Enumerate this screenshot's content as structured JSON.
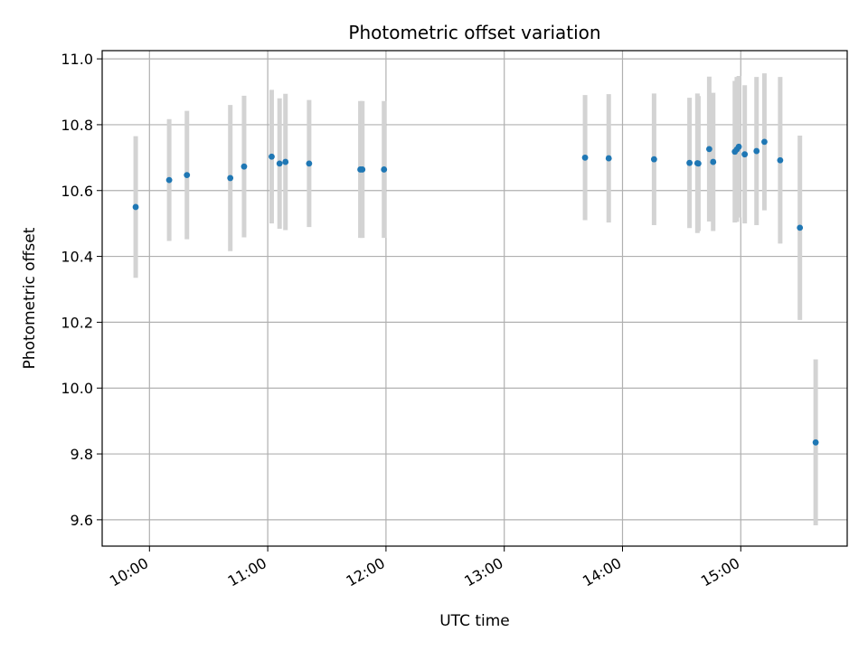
{
  "chart_data": {
    "type": "scatter",
    "title": "Photometric offset variation",
    "xlabel": "UTC time",
    "ylabel": "Photometric offset",
    "x_tick_labels": [
      "10:00",
      "11:00",
      "12:00",
      "13:00",
      "14:00",
      "15:00"
    ],
    "y_tick_labels": [
      "9.6",
      "9.8",
      "10.0",
      "10.2",
      "10.4",
      "10.6",
      "10.8",
      "11.0"
    ],
    "grid": true,
    "xlim": [
      "09:36",
      "15:54"
    ],
    "ylim": [
      9.52,
      11.025
    ],
    "points": [
      {
        "x": "09:53",
        "y": 10.55,
        "yerr": 0.215
      },
      {
        "x": "10:10",
        "y": 10.632,
        "yerr": 0.185
      },
      {
        "x": "10:19",
        "y": 10.647,
        "yerr": 0.195
      },
      {
        "x": "10:41",
        "y": 10.638,
        "yerr": 0.222
      },
      {
        "x": "10:48",
        "y": 10.673,
        "yerr": 0.215
      },
      {
        "x": "11:02",
        "y": 10.703,
        "yerr": 0.203
      },
      {
        "x": "11:06",
        "y": 10.682,
        "yerr": 0.198
      },
      {
        "x": "11:09",
        "y": 10.687,
        "yerr": 0.207
      },
      {
        "x": "11:21",
        "y": 10.682,
        "yerr": 0.193
      },
      {
        "x": "11:47",
        "y": 10.664,
        "yerr": 0.208
      },
      {
        "x": "11:48",
        "y": 10.664,
        "yerr": 0.208
      },
      {
        "x": "11:59",
        "y": 10.664,
        "yerr": 0.208
      },
      {
        "x": "13:41",
        "y": 10.7,
        "yerr": 0.19
      },
      {
        "x": "13:53",
        "y": 10.698,
        "yerr": 0.195
      },
      {
        "x": "14:16",
        "y": 10.695,
        "yerr": 0.2
      },
      {
        "x": "14:34",
        "y": 10.684,
        "yerr": 0.198
      },
      {
        "x": "14:38",
        "y": 10.683,
        "yerr": 0.212
      },
      {
        "x": "14:38.5",
        "y": 10.682,
        "yerr": 0.205
      },
      {
        "x": "14:44",
        "y": 10.726,
        "yerr": 0.22
      },
      {
        "x": "14:46",
        "y": 10.687,
        "yerr": 0.21
      },
      {
        "x": "14:57",
        "y": 10.718,
        "yerr": 0.215
      },
      {
        "x": "14:58",
        "y": 10.725,
        "yerr": 0.22
      },
      {
        "x": "14:59",
        "y": 10.733,
        "yerr": 0.215
      },
      {
        "x": "15:02",
        "y": 10.71,
        "yerr": 0.21
      },
      {
        "x": "15:08",
        "y": 10.72,
        "yerr": 0.225
      },
      {
        "x": "15:12",
        "y": 10.748,
        "yerr": 0.208
      },
      {
        "x": "15:20",
        "y": 10.692,
        "yerr": 0.253
      },
      {
        "x": "15:30",
        "y": 10.487,
        "yerr": 0.28
      },
      {
        "x": "15:38",
        "y": 9.835,
        "yerr": 0.252
      }
    ],
    "point_color": "#1f77b4",
    "errorbar_color": "#d3d3d3"
  }
}
